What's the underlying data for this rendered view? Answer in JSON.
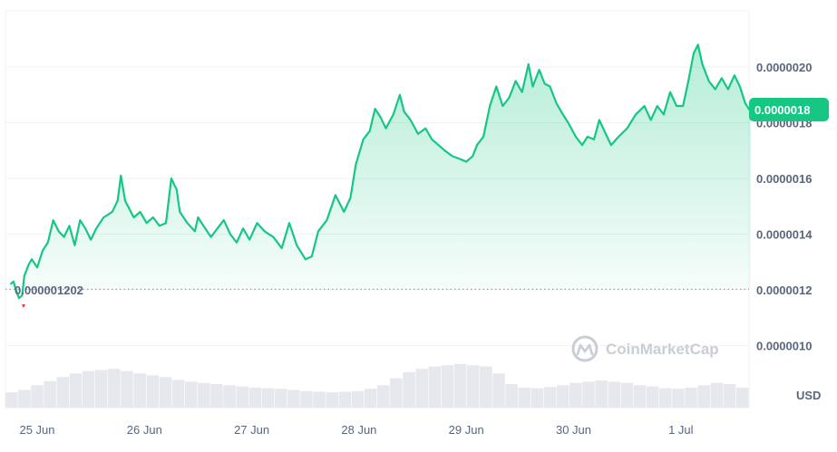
{
  "chart_data": {
    "type": "area",
    "currency_label": "USD",
    "watermark": "CoinMarketCap",
    "current_price_label": "0.0000018",
    "open_price_label": "0.000001202",
    "open_price": 1.202e-06,
    "current_price": 1.84e-06,
    "ylim": [
      9.2e-07,
      2.2e-06
    ],
    "y_ticks": [
      {
        "value": 1e-06,
        "label": "0.0000010"
      },
      {
        "value": 1.2e-06,
        "label": "0.0000012"
      },
      {
        "value": 1.4e-06,
        "label": "0.0000014"
      },
      {
        "value": 1.6e-06,
        "label": "0.0000016"
      },
      {
        "value": 1.8e-06,
        "label": "0.0000018"
      },
      {
        "value": 2e-06,
        "label": "0.0000020"
      }
    ],
    "x_ticks": [
      {
        "value": 0.0,
        "label": "25 Jun"
      },
      {
        "value": 1.0,
        "label": "26 Jun"
      },
      {
        "value": 2.0,
        "label": "27 Jun"
      },
      {
        "value": 3.0,
        "label": "28 Jun"
      },
      {
        "value": 4.0,
        "label": "29 Jun"
      },
      {
        "value": 5.0,
        "label": "30 Jun"
      },
      {
        "value": 6.0,
        "label": "1 Jul"
      }
    ],
    "xlim": [
      -0.26,
      6.66
    ],
    "grid": true,
    "colors": {
      "line": "#16c784",
      "area_top": "#16c784",
      "badge": "#16c784",
      "down_marker": "#ea3943",
      "volume": "#e6e8ed",
      "grid": "#eff2f5"
    },
    "series": [
      {
        "values": [
          [
            -0.25,
            1.22e-06
          ],
          [
            -0.22,
            1.23e-06
          ],
          [
            -0.2,
            1.202e-06
          ],
          [
            -0.17,
            1.17e-06
          ],
          [
            -0.14,
            1.18e-06
          ],
          [
            -0.12,
            1.25e-06
          ],
          [
            -0.08,
            1.29e-06
          ],
          [
            -0.05,
            1.31e-06
          ],
          [
            0.0,
            1.28e-06
          ],
          [
            0.05,
            1.34e-06
          ],
          [
            0.1,
            1.37e-06
          ],
          [
            0.15,
            1.45e-06
          ],
          [
            0.2,
            1.41e-06
          ],
          [
            0.25,
            1.39e-06
          ],
          [
            0.3,
            1.43e-06
          ],
          [
            0.35,
            1.36e-06
          ],
          [
            0.4,
            1.45e-06
          ],
          [
            0.45,
            1.42e-06
          ],
          [
            0.5,
            1.38e-06
          ],
          [
            0.55,
            1.42e-06
          ],
          [
            0.62,
            1.46e-06
          ],
          [
            0.7,
            1.48e-06
          ],
          [
            0.75,
            1.52e-06
          ],
          [
            0.78,
            1.61e-06
          ],
          [
            0.82,
            1.52e-06
          ],
          [
            0.9,
            1.46e-06
          ],
          [
            0.96,
            1.48e-06
          ],
          [
            1.02,
            1.44e-06
          ],
          [
            1.08,
            1.46e-06
          ],
          [
            1.14,
            1.43e-06
          ],
          [
            1.2,
            1.44e-06
          ],
          [
            1.25,
            1.6e-06
          ],
          [
            1.3,
            1.56e-06
          ],
          [
            1.33,
            1.48e-06
          ],
          [
            1.4,
            1.44e-06
          ],
          [
            1.47,
            1.41e-06
          ],
          [
            1.5,
            1.46e-06
          ],
          [
            1.55,
            1.43e-06
          ],
          [
            1.62,
            1.39e-06
          ],
          [
            1.68,
            1.42e-06
          ],
          [
            1.74,
            1.45e-06
          ],
          [
            1.8,
            1.4e-06
          ],
          [
            1.86,
            1.37e-06
          ],
          [
            1.92,
            1.42e-06
          ],
          [
            1.98,
            1.38e-06
          ],
          [
            2.05,
            1.44e-06
          ],
          [
            2.12,
            1.41e-06
          ],
          [
            2.2,
            1.39e-06
          ],
          [
            2.28,
            1.35e-06
          ],
          [
            2.35,
            1.44e-06
          ],
          [
            2.42,
            1.36e-06
          ],
          [
            2.5,
            1.31e-06
          ],
          [
            2.56,
            1.32e-06
          ],
          [
            2.62,
            1.41e-06
          ],
          [
            2.7,
            1.45e-06
          ],
          [
            2.78,
            1.54e-06
          ],
          [
            2.86,
            1.48e-06
          ],
          [
            2.92,
            1.53e-06
          ],
          [
            2.97,
            1.65e-06
          ],
          [
            3.04,
            1.74e-06
          ],
          [
            3.1,
            1.77e-06
          ],
          [
            3.15,
            1.85e-06
          ],
          [
            3.2,
            1.82e-06
          ],
          [
            3.25,
            1.78e-06
          ],
          [
            3.32,
            1.83e-06
          ],
          [
            3.38,
            1.9e-06
          ],
          [
            3.42,
            1.84e-06
          ],
          [
            3.48,
            1.81e-06
          ],
          [
            3.55,
            1.76e-06
          ],
          [
            3.62,
            1.78e-06
          ],
          [
            3.68,
            1.74e-06
          ],
          [
            3.74,
            1.72e-06
          ],
          [
            3.8,
            1.7e-06
          ],
          [
            3.87,
            1.68e-06
          ],
          [
            3.94,
            1.67e-06
          ],
          [
            4.0,
            1.66e-06
          ],
          [
            4.06,
            1.68e-06
          ],
          [
            4.1,
            1.72e-06
          ],
          [
            4.16,
            1.75e-06
          ],
          [
            4.22,
            1.86e-06
          ],
          [
            4.28,
            1.93e-06
          ],
          [
            4.34,
            1.86e-06
          ],
          [
            4.4,
            1.89e-06
          ],
          [
            4.46,
            1.95e-06
          ],
          [
            4.52,
            1.91e-06
          ],
          [
            4.58,
            2.01e-06
          ],
          [
            4.62,
            1.93e-06
          ],
          [
            4.68,
            1.99e-06
          ],
          [
            4.73,
            1.94e-06
          ],
          [
            4.78,
            1.93e-06
          ],
          [
            4.84,
            1.87e-06
          ],
          [
            4.9,
            1.83e-06
          ],
          [
            4.95,
            1.8e-06
          ],
          [
            5.02,
            1.75e-06
          ],
          [
            5.08,
            1.72e-06
          ],
          [
            5.13,
            1.75e-06
          ],
          [
            5.19,
            1.74e-06
          ],
          [
            5.24,
            1.81e-06
          ],
          [
            5.3,
            1.76e-06
          ],
          [
            5.35,
            1.72e-06
          ],
          [
            5.42,
            1.75e-06
          ],
          [
            5.5,
            1.78e-06
          ],
          [
            5.58,
            1.83e-06
          ],
          [
            5.66,
            1.86e-06
          ],
          [
            5.72,
            1.81e-06
          ],
          [
            5.78,
            1.86e-06
          ],
          [
            5.84,
            1.83e-06
          ],
          [
            5.9,
            1.91e-06
          ],
          [
            5.96,
            1.86e-06
          ],
          [
            6.02,
            1.86e-06
          ],
          [
            6.07,
            1.95e-06
          ],
          [
            6.12,
            2.05e-06
          ],
          [
            6.16,
            2.08e-06
          ],
          [
            6.2,
            2.01e-06
          ],
          [
            6.26,
            1.95e-06
          ],
          [
            6.32,
            1.92e-06
          ],
          [
            6.38,
            1.96e-06
          ],
          [
            6.44,
            1.92e-06
          ],
          [
            6.5,
            1.97e-06
          ],
          [
            6.55,
            1.93e-06
          ],
          [
            6.6,
            1.87e-06
          ],
          [
            6.65,
            1.84e-06
          ]
        ]
      }
    ],
    "volume": [
      0.26,
      0.3,
      0.38,
      0.45,
      0.52,
      0.58,
      0.62,
      0.64,
      0.66,
      0.62,
      0.58,
      0.55,
      0.52,
      0.47,
      0.44,
      0.42,
      0.4,
      0.38,
      0.36,
      0.34,
      0.33,
      0.32,
      0.3,
      0.28,
      0.27,
      0.26,
      0.27,
      0.28,
      0.32,
      0.38,
      0.5,
      0.6,
      0.66,
      0.7,
      0.72,
      0.74,
      0.72,
      0.7,
      0.58,
      0.4,
      0.34,
      0.33,
      0.35,
      0.38,
      0.42,
      0.44,
      0.46,
      0.44,
      0.42,
      0.38,
      0.36,
      0.33,
      0.32,
      0.34,
      0.38,
      0.42,
      0.4,
      0.34
    ]
  }
}
